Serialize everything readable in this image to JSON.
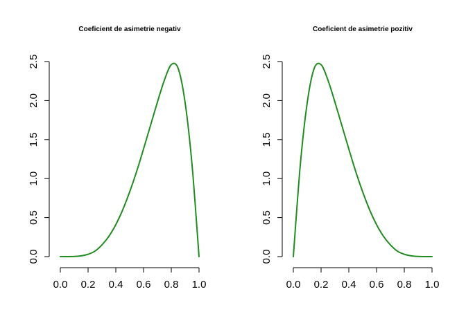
{
  "chart_data": [
    {
      "type": "line",
      "title": "Coeficient de asimetrie negativ",
      "xlabel": "",
      "ylabel": "",
      "xlim": [
        0,
        1
      ],
      "ylim": [
        0,
        2.5
      ],
      "x_ticks": [
        "0.0",
        "0.2",
        "0.4",
        "0.6",
        "0.8",
        "1.0"
      ],
      "y_ticks": [
        "0.0",
        "0.5",
        "1.0",
        "1.5",
        "2.0",
        "2.5"
      ],
      "grid": false,
      "color": "#228B22",
      "series": [
        {
          "x": [
            0.0,
            0.05,
            0.1,
            0.15,
            0.2,
            0.25,
            0.3,
            0.35,
            0.4,
            0.45,
            0.5,
            0.55,
            0.6,
            0.65,
            0.7,
            0.75,
            0.8,
            0.85,
            0.9,
            0.95,
            1.0
          ],
          "values": [
            0.0,
            0.0,
            0.002,
            0.01,
            0.03,
            0.07,
            0.15,
            0.26,
            0.41,
            0.6,
            0.83,
            1.09,
            1.38,
            1.68,
            1.98,
            2.26,
            2.46,
            2.41,
            1.97,
            1.17,
            0.0
          ]
        }
      ]
    },
    {
      "type": "line",
      "title": "Coeficient de asimetrie pozitiv",
      "xlabel": "",
      "ylabel": "",
      "xlim": [
        0,
        1
      ],
      "ylim": [
        0,
        2.5
      ],
      "x_ticks": [
        "0.0",
        "0.2",
        "0.4",
        "0.6",
        "0.8",
        "1.0"
      ],
      "y_ticks": [
        "0.0",
        "0.5",
        "1.0",
        "1.5",
        "2.0",
        "2.5"
      ],
      "grid": false,
      "color": "#228B22",
      "series": [
        {
          "x": [
            0.0,
            0.05,
            0.1,
            0.15,
            0.2,
            0.25,
            0.3,
            0.35,
            0.4,
            0.45,
            0.5,
            0.55,
            0.6,
            0.65,
            0.7,
            0.75,
            0.8,
            0.85,
            0.9,
            0.95,
            1.0
          ],
          "values": [
            0.0,
            1.17,
            1.97,
            2.41,
            2.46,
            2.26,
            1.98,
            1.68,
            1.38,
            1.09,
            0.83,
            0.6,
            0.41,
            0.26,
            0.15,
            0.07,
            0.03,
            0.01,
            0.002,
            0.0,
            0.0
          ]
        }
      ]
    }
  ]
}
